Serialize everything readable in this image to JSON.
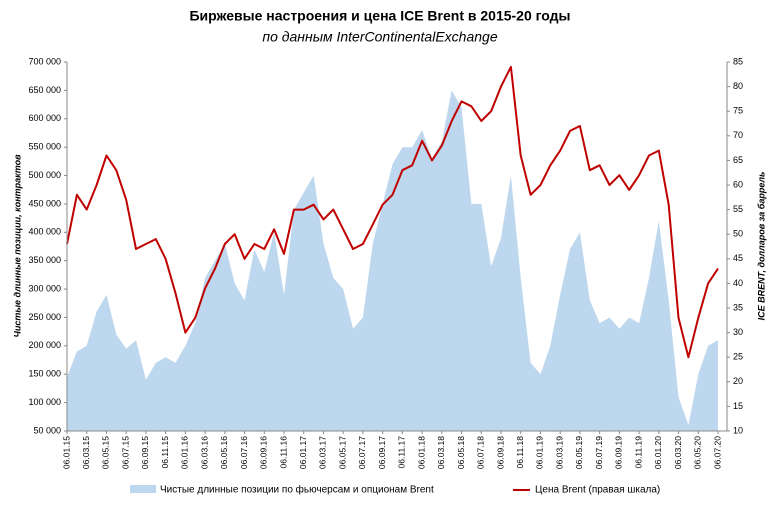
{
  "chart_data": {
    "type": "area-line",
    "title": "Биржевые настроения  и цена ICE Brent в 2015-20 годы",
    "subtitle": "по данным InterContinentalExchange",
    "y_label": "Чистые длинные позиции, контрактов",
    "y2_label": "ICE BRENT, долларов за баррель",
    "categories": [
      "06.01.15",
      null,
      "06.03.15",
      null,
      "06.05.15",
      null,
      "06.07.15",
      null,
      "06.09.15",
      null,
      "06.11.15",
      null,
      "06.01.16",
      null,
      "06.03.16",
      null,
      "06.05.16",
      null,
      "06.07.16",
      null,
      "06.09.16",
      null,
      "06.11.16",
      null,
      "06.01.17",
      null,
      "06.03.17",
      null,
      "06.05.17",
      null,
      "06.07.17",
      null,
      "06.09.17",
      null,
      "06.11.17",
      null,
      "06.01.18",
      null,
      "06.03.18",
      null,
      "06.05.18",
      null,
      "06.07.18",
      null,
      "06.09.18",
      null,
      "06.11.18",
      null,
      "06.01.19",
      null,
      "06.03.19",
      null,
      "06.05.19",
      null,
      "06.07.19",
      null,
      "06.09.19",
      null,
      "06.11.19",
      null,
      "06.01.20",
      null,
      "06.03.20",
      null,
      "06.05.20",
      null,
      "06.07.20"
    ],
    "series": [
      {
        "name": "Чистые длинные позиции по фьючерсам и опционам Brent",
        "color": "#bdd7ee",
        "kind": "area",
        "values": [
          145000,
          190000,
          200000,
          260000,
          290000,
          220000,
          195000,
          210000,
          140000,
          170000,
          180000,
          170000,
          200000,
          240000,
          320000,
          350000,
          380000,
          310000,
          280000,
          370000,
          330000,
          400000,
          290000,
          440000,
          470000,
          500000,
          380000,
          320000,
          300000,
          230000,
          250000,
          380000,
          450000,
          520000,
          550000,
          550000,
          580000,
          530000,
          560000,
          650000,
          620000,
          450000,
          450000,
          340000,
          390000,
          500000,
          320000,
          170000,
          150000,
          200000,
          290000,
          370000,
          400000,
          280000,
          240000,
          250000,
          230000,
          250000,
          240000,
          320000,
          420000,
          280000,
          110000,
          60000,
          150000,
          200000,
          210000
        ]
      },
      {
        "name": "Цена Brent (правая шкала)",
        "color": "#c00000",
        "kind": "line",
        "axis": "y2",
        "values": [
          48,
          58,
          55,
          60,
          66,
          63,
          57,
          47,
          48,
          49,
          45,
          38,
          30,
          33,
          39,
          43,
          48,
          50,
          45,
          48,
          47,
          51,
          46,
          55,
          55,
          56,
          53,
          55,
          51,
          47,
          48,
          52,
          56,
          58,
          63,
          64,
          69,
          65,
          68,
          73,
          77,
          76,
          73,
          75,
          80,
          84,
          66,
          58,
          60,
          64,
          67,
          71,
          72,
          63,
          64,
          60,
          62,
          59,
          62,
          66,
          67,
          56,
          33,
          25,
          33,
          40,
          43
        ]
      }
    ],
    "ylim": [
      50000,
      700000
    ],
    "yticks": [
      {
        "value": 50000,
        "label": "50 000"
      },
      {
        "value": 100000,
        "label": "100 000"
      },
      {
        "value": 150000,
        "label": "150 000"
      },
      {
        "value": 200000,
        "label": "200 000"
      },
      {
        "value": 250000,
        "label": "250 000"
      },
      {
        "value": 300000,
        "label": "300 000"
      },
      {
        "value": 350000,
        "label": "350 000"
      },
      {
        "value": 400000,
        "label": "400 000"
      },
      {
        "value": 450000,
        "label": "450 000"
      },
      {
        "value": 500000,
        "label": "500 000"
      },
      {
        "value": 550000,
        "label": "550 000"
      },
      {
        "value": 600000,
        "label": "600 000"
      },
      {
        "value": 650000,
        "label": "650 000"
      },
      {
        "value": 700000,
        "label": "700 000"
      }
    ],
    "y2lim": [
      10,
      85
    ],
    "y2ticks": [
      10,
      15,
      20,
      25,
      30,
      35,
      40,
      45,
      50,
      55,
      60,
      65,
      70,
      75,
      80,
      85
    ],
    "legend": "bottom"
  }
}
